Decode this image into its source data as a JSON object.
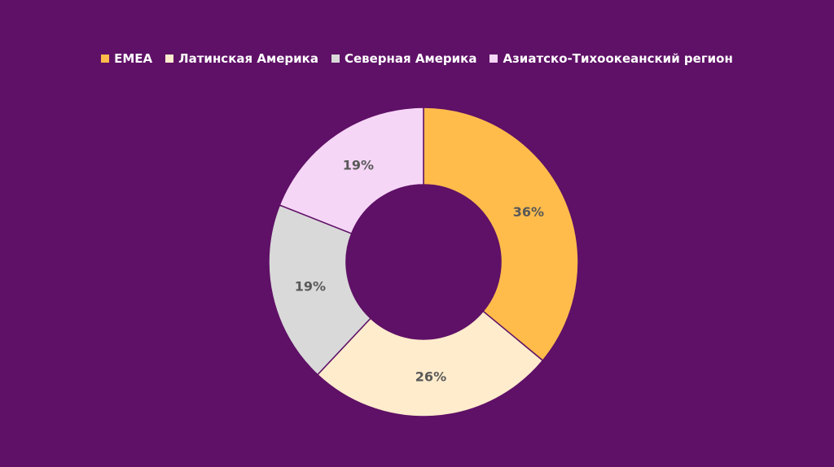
{
  "chart_data": {
    "type": "donut",
    "categories": [
      "EMEA",
      "Латинская Америка",
      "Северная Америка",
      "Азиатско-Тихоокеанский регион"
    ],
    "values": [
      36,
      26,
      19,
      19
    ],
    "value_labels": [
      "36%",
      "26%",
      "19%",
      "19%"
    ],
    "colors": [
      "#ffbc4b",
      "#ffeccd",
      "#d9d9d9",
      "#f6d6f6"
    ],
    "legend": "top"
  }
}
